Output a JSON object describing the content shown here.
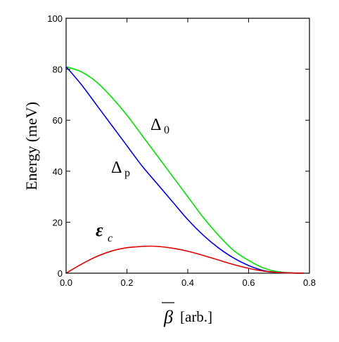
{
  "chart_data": {
    "type": "line",
    "xlabel_symbol": "β",
    "xlabel_unit": "[arb.]",
    "ylabel": "Energy  (meV)",
    "xlim": [
      0.0,
      0.8
    ],
    "ylim": [
      0,
      100
    ],
    "xticks": [
      0.0,
      0.2,
      0.4,
      0.6,
      0.8
    ],
    "xtick_labels": [
      "0.0",
      "0.2",
      "0.4",
      "0.6",
      "0.8"
    ],
    "yticks": [
      0,
      20,
      40,
      60,
      80,
      100
    ],
    "ytick_labels": [
      "0",
      "20",
      "40",
      "60",
      "80",
      "100"
    ],
    "grid": false,
    "series": [
      {
        "name": "Δ0",
        "label_main": "Δ",
        "label_sub": "0",
        "color": "#00e000",
        "x": [
          0.0,
          0.05,
          0.1,
          0.15,
          0.2,
          0.25,
          0.3,
          0.35,
          0.4,
          0.45,
          0.5,
          0.55,
          0.6,
          0.65,
          0.7,
          0.75,
          0.78
        ],
        "y": [
          81,
          79,
          75,
          69,
          62,
          54,
          46,
          38,
          30,
          22,
          15,
          9,
          5,
          2,
          0.5,
          0.1,
          0
        ]
      },
      {
        "name": "Δp",
        "label_main": "Δ",
        "label_sub": "p",
        "color": "#0000e0",
        "x": [
          0.0,
          0.05,
          0.1,
          0.15,
          0.2,
          0.25,
          0.3,
          0.35,
          0.4,
          0.45,
          0.5,
          0.55,
          0.6,
          0.65,
          0.7,
          0.75,
          0.78
        ],
        "y": [
          81,
          74,
          66,
          58,
          50,
          42,
          35,
          28,
          21,
          15,
          10,
          6,
          3,
          1,
          0.3,
          0.05,
          0
        ]
      },
      {
        "name": "εc",
        "label_main": "ε",
        "label_sub": "c",
        "color": "#e00000",
        "x": [
          0.0,
          0.05,
          0.1,
          0.15,
          0.2,
          0.25,
          0.27,
          0.3,
          0.35,
          0.4,
          0.45,
          0.5,
          0.55,
          0.6,
          0.65,
          0.7,
          0.75,
          0.78
        ],
        "y": [
          0,
          3.5,
          6.5,
          8.7,
          10,
          10.5,
          10.6,
          10.5,
          9.8,
          8.6,
          7,
          5.2,
          3.4,
          1.9,
          0.8,
          0.25,
          0.05,
          0
        ]
      }
    ]
  }
}
